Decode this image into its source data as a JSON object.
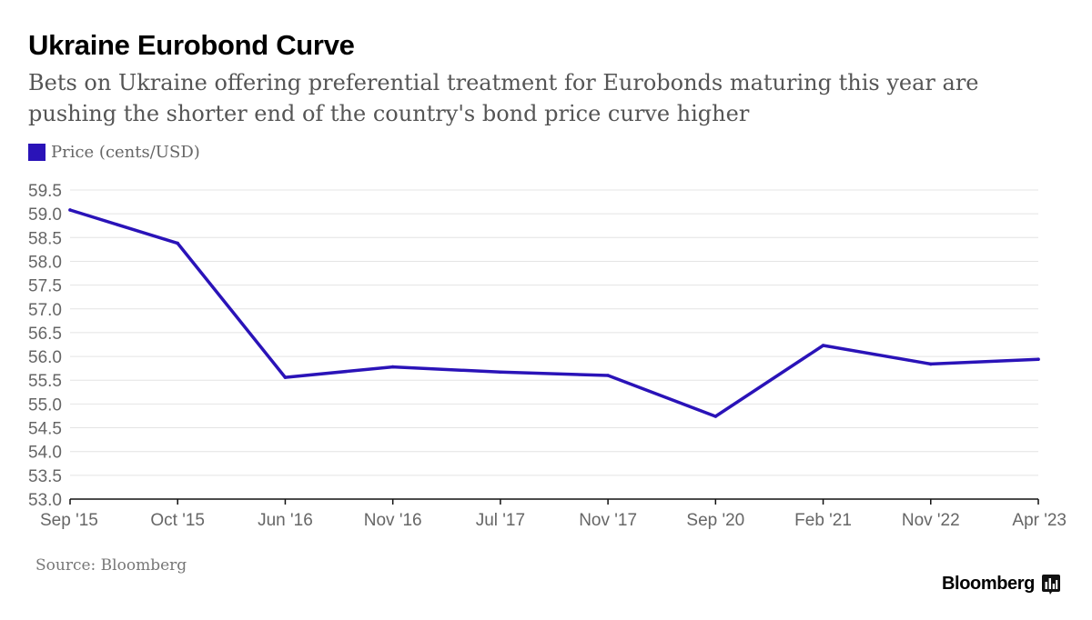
{
  "colors": {
    "series": "#2a13b8",
    "grid": "#e4e4e4",
    "axis": "#111111",
    "text": "#666666"
  },
  "brand": {
    "name": "Bloomberg",
    "icon": "bar-chart-icon"
  },
  "source": "Source: Bloomberg",
  "chart_data": {
    "type": "line",
    "title": "Ukraine Eurobond Curve",
    "subtitle": "Bets on Ukraine offering preferential treatment for Eurobonds maturing this year are pushing the shorter end of the country's bond price curve higher",
    "legend": {
      "position": "top-left"
    },
    "categories": [
      "Sep '15",
      "Oct '15",
      "Jun '16",
      "Nov '16",
      "Jul '17",
      "Nov '17",
      "Sep '20",
      "Feb '21",
      "Nov '22",
      "Apr '23"
    ],
    "series": [
      {
        "name": "Price (cents/USD)",
        "values": [
          59.08,
          58.38,
          55.56,
          55.78,
          55.67,
          55.6,
          54.74,
          56.23,
          55.84,
          55.94
        ]
      }
    ],
    "ylim": [
      53.0,
      59.5
    ],
    "yticks": [
      "53.0",
      "53.5",
      "54.0",
      "54.5",
      "55.0",
      "55.5",
      "56.0",
      "56.5",
      "57.0",
      "57.5",
      "58.0",
      "58.5",
      "59.0",
      "59.5"
    ],
    "grid": true,
    "xlabel": "",
    "ylabel": ""
  }
}
